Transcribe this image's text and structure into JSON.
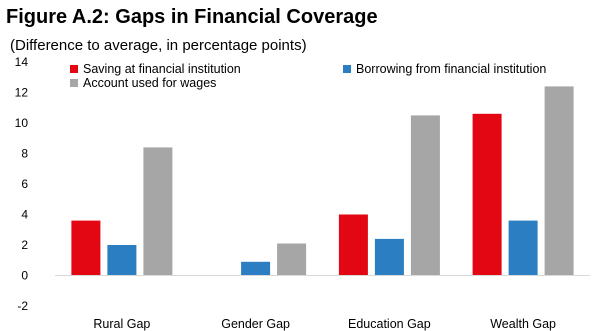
{
  "title": "Figure A.2: Gaps in Financial Coverage",
  "subtitle": "(Difference to average, in percentage points)",
  "chart_data": {
    "type": "bar",
    "categories": [
      "Rural Gap",
      "Gender Gap",
      "Education Gap",
      "Wealth Gap"
    ],
    "series": [
      {
        "name": "Saving at financial institution",
        "color": "#e30613",
        "values": [
          3.6,
          null,
          4.0,
          10.6
        ]
      },
      {
        "name": "Borrowing from financial institution",
        "color": "#2a7ec1",
        "values": [
          2.0,
          0.9,
          2.4,
          3.6
        ]
      },
      {
        "name": "Account used for wages",
        "color": "#a6a6a6",
        "values": [
          8.4,
          2.1,
          10.5,
          12.4
        ]
      }
    ],
    "ylim": [
      -2,
      14
    ],
    "yticks": [
      -2,
      0,
      2,
      4,
      6,
      8,
      10,
      12,
      14
    ],
    "legend_position": "top",
    "grid": false
  }
}
